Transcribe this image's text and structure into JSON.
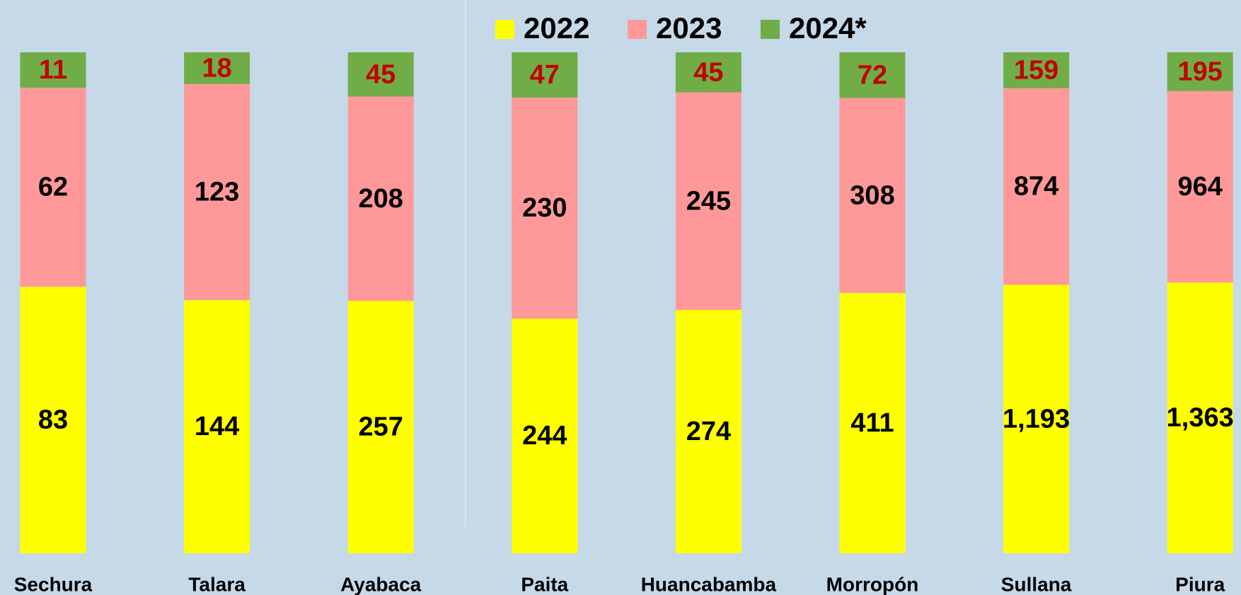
{
  "chart_data": {
    "type": "stacked_bar_100",
    "categories": [
      "Sechura",
      "Talara",
      "Ayabaca",
      "Paita",
      "Huancabamba",
      "Morropón",
      "Sullana",
      "Piura"
    ],
    "series": [
      {
        "name": "2022",
        "color": "#ffff00",
        "label_color": "#000000",
        "values": [
          83,
          144,
          257,
          244,
          274,
          411,
          1193,
          1363
        ],
        "value_labels": [
          "83",
          "144",
          "257",
          "244",
          "274",
          "411",
          "1,193",
          "1,363"
        ]
      },
      {
        "name": "2023",
        "color": "#ff9999",
        "label_color": "#000000",
        "values": [
          62,
          123,
          208,
          230,
          245,
          308,
          874,
          964
        ]
      },
      {
        "name": "2024*",
        "color": "#70ad47",
        "label_color": "#c00000",
        "values": [
          11,
          18,
          45,
          47,
          45,
          72,
          159,
          195
        ]
      }
    ]
  }
}
